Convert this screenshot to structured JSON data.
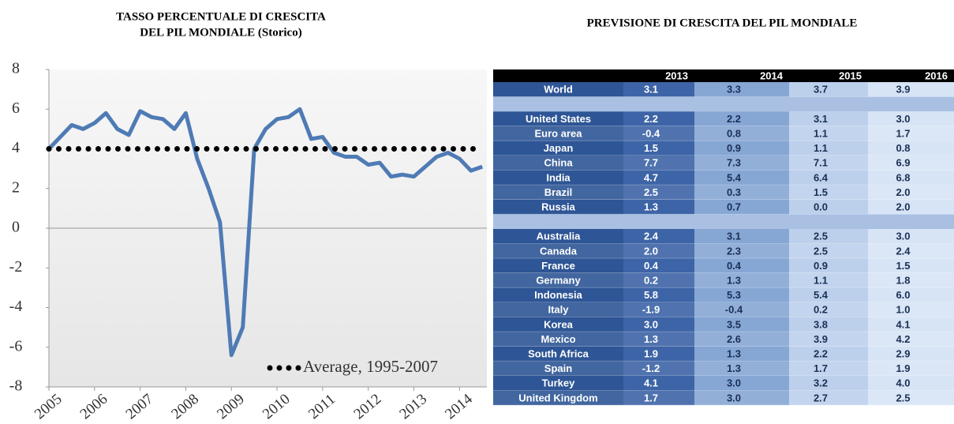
{
  "chart_data": {
    "type": "line",
    "title": [
      "TASSO PERCENTUALE DI CRESCITA",
      "DEL PIL MONDIALE (Storico)"
    ],
    "xlim": [
      2005,
      2014.6
    ],
    "xticks": [
      2005,
      2006,
      2007,
      2008,
      2009,
      2010,
      2011,
      2012,
      2013,
      2014
    ],
    "ylim": [
      -8,
      8
    ],
    "yticks": [
      -8,
      -6,
      -4,
      -2,
      0,
      2,
      4,
      6,
      8
    ],
    "series": [
      {
        "color": "#4f7bb5",
        "x": [
          2005,
          2005.25,
          2005.5,
          2005.75,
          2006,
          2006.25,
          2006.5,
          2006.75,
          2007,
          2007.25,
          2007.5,
          2007.75,
          2008,
          2008.25,
          2008.5,
          2008.75,
          2009,
          2009.25,
          2009.5,
          2009.75,
          2010,
          2010.25,
          2010.5,
          2010.75,
          2011,
          2011.25,
          2011.5,
          2011.75,
          2012,
          2012.25,
          2012.5,
          2012.75,
          2013,
          2013.25,
          2013.5,
          2013.75,
          2014,
          2014.25,
          2014.5
        ],
        "values": [
          4.0,
          4.6,
          5.2,
          5.0,
          5.3,
          5.8,
          5.0,
          4.7,
          5.9,
          5.6,
          5.5,
          5.0,
          5.8,
          3.5,
          2.0,
          0.3,
          -6.4,
          -5.0,
          4.0,
          5.0,
          5.5,
          5.6,
          6.0,
          4.5,
          4.6,
          3.8,
          3.6,
          3.6,
          3.2,
          3.3,
          2.6,
          2.7,
          2.6,
          3.1,
          3.6,
          3.8,
          3.5,
          2.9,
          3.1
        ]
      },
      {
        "name": "Average, 1995-2007",
        "color": "#000000",
        "x": [
          2005,
          2014.5
        ],
        "values": [
          4,
          4
        ]
      }
    ]
  },
  "table": {
    "title": "PREVISIONE DI CRESCITA DEL PIL MONDIALE",
    "columns": [
      "2013",
      "2014",
      "2015",
      "2016"
    ],
    "groups": [
      [
        [
          "World",
          "3.1",
          "3.3",
          "3.7",
          "3.9"
        ]
      ],
      [
        [
          "United States",
          "2.2",
          "2.2",
          "3.1",
          "3.0"
        ],
        [
          "Euro area",
          "-0.4",
          "0.8",
          "1.1",
          "1.7"
        ],
        [
          "Japan",
          "1.5",
          "0.9",
          "1.1",
          "0.8"
        ],
        [
          "China",
          "7.7",
          "7.3",
          "7.1",
          "6.9"
        ],
        [
          "India",
          "4.7",
          "5.4",
          "6.4",
          "6.8"
        ],
        [
          "Brazil",
          "2.5",
          "0.3",
          "1.5",
          "2.0"
        ],
        [
          "Russia",
          "1.3",
          "0.7",
          "0.0",
          "2.0"
        ]
      ],
      [
        [
          "Australia",
          "2.4",
          "3.1",
          "2.5",
          "3.0"
        ],
        [
          "Canada",
          "2.0",
          "2.3",
          "2.5",
          "2.4"
        ],
        [
          "France",
          "0.4",
          "0.4",
          "0.9",
          "1.5"
        ],
        [
          "Germany",
          "0.2",
          "1.3",
          "1.1",
          "1.8"
        ],
        [
          "Indonesia",
          "5.8",
          "5.3",
          "5.4",
          "6.0"
        ],
        [
          "Italy",
          "-1.9",
          "-0.4",
          "0.2",
          "1.0"
        ],
        [
          "Korea",
          "3.0",
          "3.5",
          "3.8",
          "4.1"
        ],
        [
          "Mexico",
          "1.3",
          "2.6",
          "3.9",
          "4.2"
        ],
        [
          "South Africa",
          "1.9",
          "1.3",
          "2.2",
          "2.9"
        ],
        [
          "Spain",
          "-1.2",
          "1.3",
          "1.7",
          "1.9"
        ],
        [
          "Turkey",
          "4.1",
          "3.0",
          "3.2",
          "4.0"
        ],
        [
          "United Kingdom",
          "1.7",
          "3.0",
          "2.7",
          "2.5"
        ]
      ]
    ]
  }
}
